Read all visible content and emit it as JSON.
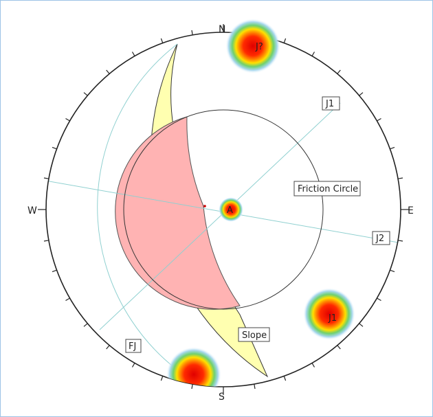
{
  "diagram": {
    "directions": {
      "north": "N",
      "south": "S",
      "east": "E",
      "west": "W"
    },
    "labels": {
      "j1": "J1",
      "j2": "J2",
      "fj": "FJ",
      "friction_circle": "Friction Circle",
      "slope": "Slope"
    },
    "pole_labels": {
      "p_north": "J?",
      "p_center": "A",
      "p_east": "J1"
    },
    "colors": {
      "slope_band": "#ffffb0",
      "failure_zone": "#ffb3b3",
      "net_lines": "#8fd0d0",
      "great_circle": "#333333",
      "contour_hot": "#e00000",
      "contour_warm": "#ff8a00",
      "contour_mid": "#ffe000",
      "contour_cool": "#6fd06f",
      "contour_cold": "#a8d8ef"
    }
  }
}
